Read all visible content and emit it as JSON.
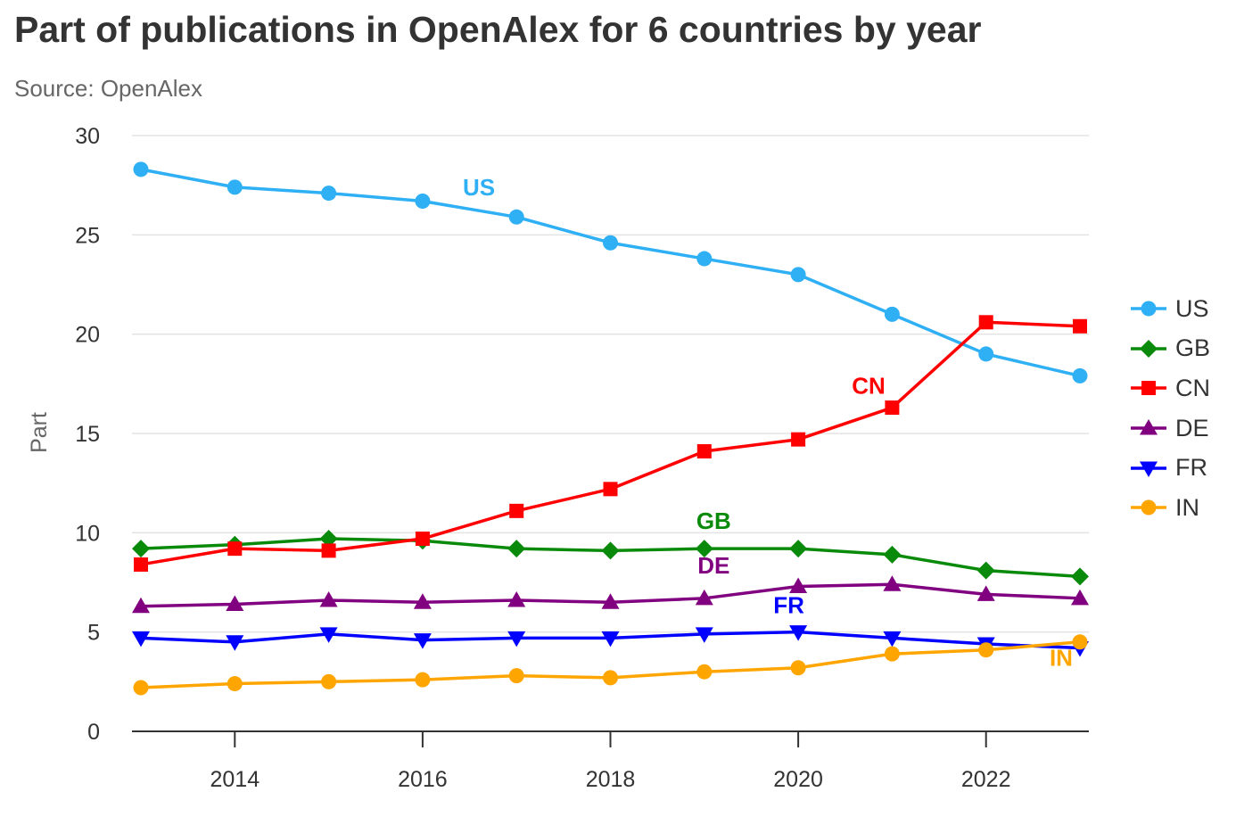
{
  "chart_data": {
    "type": "line",
    "title": "Part of publications in OpenAlex for 6 countries by year",
    "subtitle": "Source: OpenAlex",
    "xlabel": "",
    "ylabel": "Part",
    "ylim": [
      0,
      30
    ],
    "yticks": [
      0,
      5,
      10,
      15,
      20,
      25,
      30
    ],
    "xticks": [
      2014,
      2016,
      2018,
      2020,
      2022
    ],
    "grid": true,
    "legend_position": "right",
    "x": [
      2013,
      2014,
      2015,
      2016,
      2017,
      2018,
      2019,
      2020,
      2021,
      2022,
      2023
    ],
    "series": [
      {
        "name": "US",
        "color": "#2fb0f5",
        "marker": "circle",
        "label_at": {
          "x": 2016.6,
          "y": 27.0
        },
        "values": [
          28.3,
          27.4,
          27.1,
          26.7,
          25.9,
          24.6,
          23.8,
          23.0,
          21.0,
          19.0,
          17.9
        ]
      },
      {
        "name": "GB",
        "color": "#0a8a0a",
        "marker": "diamond",
        "label_at": {
          "x": 2019.1,
          "y": 10.2
        },
        "values": [
          9.2,
          9.4,
          9.7,
          9.6,
          9.2,
          9.1,
          9.2,
          9.2,
          8.9,
          8.1,
          7.8
        ]
      },
      {
        "name": "CN",
        "color": "#ff0000",
        "marker": "square",
        "label_at": {
          "x": 2020.75,
          "y": 17.0
        },
        "values": [
          8.4,
          9.2,
          9.1,
          9.7,
          11.1,
          12.2,
          14.1,
          14.7,
          16.3,
          20.6,
          20.4
        ]
      },
      {
        "name": "DE",
        "color": "#800080",
        "marker": "triangle",
        "label_at": {
          "x": 2019.1,
          "y": 7.95
        },
        "values": [
          6.3,
          6.4,
          6.6,
          6.5,
          6.6,
          6.5,
          6.7,
          7.3,
          7.4,
          6.9,
          6.7
        ]
      },
      {
        "name": "FR",
        "color": "#0000ff",
        "marker": "triangle-down",
        "label_at": {
          "x": 2019.9,
          "y": 5.95
        },
        "values": [
          4.7,
          4.5,
          4.9,
          4.6,
          4.7,
          4.7,
          4.9,
          5.0,
          4.7,
          4.4,
          4.2
        ]
      },
      {
        "name": "IN",
        "color": "#ffa500",
        "marker": "circle",
        "label_at": {
          "x": 2022.8,
          "y": 3.3
        },
        "values": [
          2.2,
          2.4,
          2.5,
          2.6,
          2.8,
          2.7,
          3.0,
          3.2,
          3.9,
          4.1,
          4.5
        ]
      }
    ]
  }
}
